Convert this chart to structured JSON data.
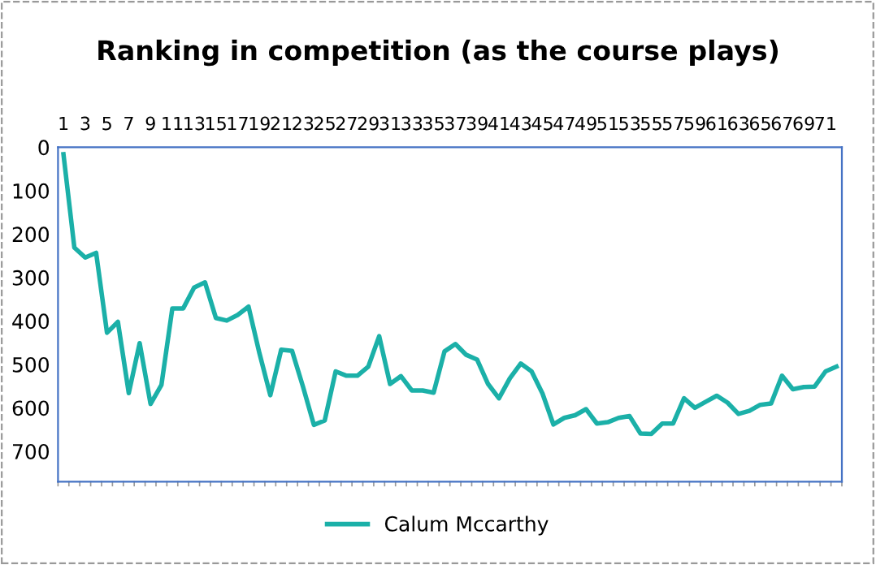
{
  "chart_data": {
    "type": "line",
    "title": "Ranking in competition (as the course plays)",
    "categories": [
      "1",
      null,
      "3",
      null,
      "5",
      null,
      "7",
      null,
      "9",
      null,
      "11",
      null,
      "13",
      null,
      "15",
      null,
      "17",
      null,
      "19",
      null,
      "21",
      null,
      "23",
      null,
      "25",
      null,
      "27",
      null,
      "29",
      null,
      "31",
      null,
      "33",
      null,
      "35",
      null,
      "37",
      null,
      "39",
      null,
      "41",
      null,
      "43",
      null,
      "45",
      null,
      "47",
      null,
      "49",
      null,
      "51",
      null,
      "53",
      null,
      "55",
      null,
      "57",
      null,
      "59",
      null,
      "61",
      null,
      "63",
      null,
      "65",
      null,
      "67",
      null,
      "69",
      null,
      "71",
      null
    ],
    "series": [
      {
        "name": "Calum Mccarthy",
        "color": "#1bb0a8",
        "values": [
          16,
          231,
          254,
          243,
          427,
          402,
          566,
          451,
          591,
          547,
          371,
          371,
          323,
          311,
          393,
          399,
          386,
          367,
          474,
          571,
          466,
          469,
          551,
          639,
          629,
          516,
          526,
          526,
          505,
          435,
          545,
          527,
          560,
          560,
          565,
          470,
          453,
          478,
          489,
          545,
          578,
          532,
          498,
          516,
          567,
          638,
          623,
          617,
          603,
          636,
          633,
          623,
          619,
          659,
          660,
          636,
          636,
          578,
          600,
          586,
          572,
          588,
          614,
          607,
          593,
          590,
          526,
          557,
          552,
          551,
          516,
          505
        ]
      }
    ],
    "ylim": [
      770,
      0
    ],
    "yticks": [
      0,
      100,
      200,
      300,
      400,
      500,
      600,
      700
    ],
    "grid": false,
    "legend": "bottom",
    "marker": "none",
    "line_style": "solid"
  }
}
